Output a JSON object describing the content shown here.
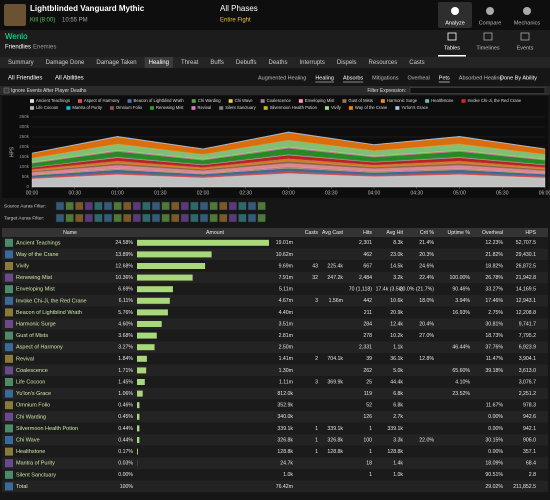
{
  "header": {
    "encounter": "Lightblinded Vanguard Mythic",
    "result": "Kill (8:00)",
    "time": "10:55 PM",
    "phase": "All Phases",
    "fight": "Entire Fight",
    "nav": [
      "Analyze",
      "Compare",
      "Mechanics"
    ]
  },
  "player": {
    "name": "Wenlo",
    "views": [
      "Friendlies",
      "Enemies"
    ]
  },
  "view_tabs": [
    "Tables",
    "Timelines",
    "Events"
  ],
  "tabs": [
    "Summary",
    "Damage Done",
    "Damage Taken",
    "Healing",
    "Threat",
    "Buffs",
    "Debuffs",
    "Deaths",
    "Interrupts",
    "Dispels",
    "Resources",
    "Casts"
  ],
  "filters": {
    "left": [
      "All Friendlies",
      "All Abilities"
    ],
    "options": [
      "Augmented Healing",
      "Healing",
      "Absorbs",
      "Mitigations",
      "Overheal",
      "Pets",
      "Absorbed Healing"
    ],
    "mode": "Done By Ability"
  },
  "ignore_deaths": "Ignore Events After Player Deaths",
  "filter_expression": "Filter Expression:",
  "chart_data": {
    "type": "area",
    "stacked": true,
    "y_label": "HPS",
    "grid": true,
    "x": [
      0,
      60,
      120,
      180,
      240,
      300,
      360
    ],
    "xlim": [
      0,
      360
    ],
    "xticks": [
      {
        "value": 0,
        "label": "00:00"
      },
      {
        "value": 30,
        "label": "00:30"
      },
      {
        "value": 60,
        "label": "01:00"
      },
      {
        "value": 90,
        "label": "01:30"
      },
      {
        "value": 120,
        "label": "02:00"
      },
      {
        "value": 150,
        "label": "02:30"
      },
      {
        "value": 180,
        "label": "03:00"
      },
      {
        "value": 210,
        "label": "03:30"
      },
      {
        "value": 240,
        "label": "04:00"
      },
      {
        "value": 270,
        "label": "04:30"
      },
      {
        "value": 300,
        "label": "05:00"
      },
      {
        "value": 330,
        "label": "05:30"
      },
      {
        "value": 360,
        "label": "06:00"
      }
    ],
    "ylim": [
      0,
      350000
    ],
    "yticks": [
      0,
      {
        "value": 50000,
        "label": "50k"
      },
      {
        "value": 100000,
        "label": "100k"
      },
      {
        "value": 150000,
        "label": "150k"
      },
      {
        "value": 200000,
        "label": "200k"
      },
      {
        "value": 250000,
        "label": "250k"
      },
      {
        "value": 300000,
        "label": "300k"
      },
      {
        "value": 350000,
        "label": "350k"
      }
    ],
    "series": [
      {
        "name": "Ancient Teachings",
        "color": "#e0e0e0",
        "values": [
          42000,
          63000,
          47000,
          69000,
          53000,
          63000,
          47000
        ]
      },
      {
        "name": "Aspect of Harmony",
        "color": "#e15759",
        "values": [
          6000,
          8000,
          6000,
          9000,
          7000,
          8000,
          6000
        ]
      },
      {
        "name": "Beacon of Lightblind Wrath",
        "color": "#4e79a7",
        "values": [
          10000,
          15000,
          11000,
          16000,
          12000,
          15000,
          11000
        ]
      },
      {
        "name": "Chi Warding",
        "color": "#59a14f",
        "values": [
          1000,
          1000,
          1000,
          1000,
          1000,
          1000,
          1000
        ]
      },
      {
        "name": "Chi Wave",
        "color": "#edc948",
        "values": [
          1000,
          1000,
          1000,
          1000,
          1000,
          1000,
          1000
        ]
      },
      {
        "name": "Coalescence",
        "color": "#b07aa1",
        "values": [
          3000,
          4000,
          3000,
          5000,
          4000,
          4000,
          3000
        ]
      },
      {
        "name": "Enveloping Mist",
        "color": "#ff9da7",
        "values": [
          11000,
          17000,
          13000,
          18000,
          14000,
          17000,
          13000
        ]
      },
      {
        "name": "Gust of Mists",
        "color": "#9c755f",
        "values": [
          6000,
          9000,
          7000,
          10000,
          8000,
          9000,
          7000
        ]
      },
      {
        "name": "Harmonic Surge",
        "color": "#f28e2b",
        "values": [
          8000,
          12000,
          9000,
          13000,
          10000,
          12000,
          9000
        ]
      },
      {
        "name": "Healthstone",
        "color": "#76b7b2",
        "values": [
          0,
          500,
          0,
          500,
          500,
          500,
          0
        ]
      },
      {
        "name": "Invoke Chi-Ji, the Red Crane",
        "color": "#d62728",
        "values": [
          10000,
          16000,
          12000,
          17000,
          13000,
          16000,
          12000
        ]
      },
      {
        "name": "Life Cocoon",
        "color": "#bab0ac",
        "values": [
          2000,
          4000,
          3000,
          4000,
          3000,
          4000,
          3000
        ]
      },
      {
        "name": "Mantra of Purity",
        "color": "#17becf",
        "values": [
          100,
          100,
          100,
          100,
          100,
          100,
          100
        ]
      },
      {
        "name": "Omnium Folio",
        "color": "#8c564b",
        "values": [
          1000,
          1000,
          1000,
          1000,
          1000,
          1000,
          1000
        ]
      },
      {
        "name": "Renewing Mist",
        "color": "#2ca02c",
        "values": [
          18000,
          26000,
          20000,
          29000,
          22000,
          26000,
          20000
        ]
      },
      {
        "name": "Revival",
        "color": "#e377c2",
        "values": [
          3000,
          5000,
          4000,
          5000,
          4000,
          5000,
          4000
        ]
      },
      {
        "name": "Silent Sanctuary",
        "color": "#7f7f7f",
        "values": [
          0,
          0,
          0,
          0,
          0,
          0,
          0
        ]
      },
      {
        "name": "Silvermoon Health Potion",
        "color": "#bcbd22",
        "values": [
          1000,
          1000,
          1000,
          1000,
          1000,
          1000,
          1000
        ]
      },
      {
        "name": "Vivify",
        "color": "#98df8a",
        "values": [
          21000,
          32000,
          24000,
          35000,
          27000,
          32000,
          24000
        ]
      },
      {
        "name": "Way of the Crane",
        "color": "#ff7f0e",
        "values": [
          24000,
          35000,
          26000,
          38000,
          29000,
          35000,
          26000
        ]
      },
      {
        "name": "Yu'lon's Grace",
        "color": "#aec7e8",
        "values": [
          2000,
          3000,
          2000,
          3000,
          2000,
          3000,
          2000
        ]
      }
    ]
  },
  "aura_filters": [
    "Source Auras Filter:",
    "Target Auras Filter:"
  ],
  "table": {
    "columns": [
      "Name",
      "Amount",
      "Casts",
      "Avg Cast",
      "Hits",
      "Avg Hit",
      "Crit %",
      "Uptime %",
      "Overheal",
      "HPS"
    ],
    "bar_color": "#a9d87c",
    "rows": [
      [
        "Ancient Teachings",
        24.58,
        "24.58%",
        "19.01m",
        null,
        null,
        "2,301",
        "8.3k",
        "21.4%",
        null,
        "12.23%",
        "52,707.5"
      ],
      [
        "Way of the Crane",
        13.89,
        "13.89%",
        "10.62m",
        null,
        null,
        "462",
        "23.0k",
        "20.3%",
        null,
        "21.82%",
        "29,430.1"
      ],
      [
        "Vivify",
        12.68,
        "12.68%",
        "9.69m",
        "43",
        "225.4k",
        "667",
        "14.5k",
        "24.6%",
        null,
        "18.82%",
        "26,872.5"
      ],
      [
        "Renewing Mist",
        10.36,
        "10.36%",
        "7.91m",
        "32",
        "247.2k",
        "2,484",
        "3.2k",
        "22.4%",
        "100.00%",
        "26.78%",
        "21,942.8"
      ],
      [
        "Enveloping Mist",
        6.69,
        "6.69%",
        "5.11m",
        null,
        null,
        "70 (1,118)",
        "17.4k (3.5k)",
        "20.0% (21.7%)",
        "90.46%",
        "33.27%",
        "14,169.5"
      ],
      [
        "Invoke Chi-Ji, the Red Crane",
        6.11,
        "6.11%",
        "4.67m",
        "3",
        "1.56m",
        "442",
        "10.6k",
        "18.0%",
        "3.94%",
        "17.46%",
        "12,943.1"
      ],
      [
        "Beacon of Lightblind Wrath",
        5.76,
        "5.76%",
        "4.40m",
        null,
        null,
        "211",
        "20.9k",
        null,
        "16.93%",
        "2.75%",
        "12,208.8"
      ],
      [
        "Harmonic Surge",
        4.6,
        "4.60%",
        "3.51m",
        null,
        null,
        "284",
        "12.4k",
        "20.4%",
        null,
        "30.81%",
        "9,741.7"
      ],
      [
        "Gust of Mists",
        3.68,
        "3.68%",
        "2.81m",
        null,
        null,
        "278",
        "10.2k",
        "27.0%",
        null,
        "18.73%",
        "7,795.2"
      ],
      [
        "Aspect of Harmony",
        3.27,
        "3.27%",
        "2.50m",
        null,
        null,
        "2,331",
        "1.1k",
        null,
        "46.44%",
        "37.76%",
        "6,923.9"
      ],
      [
        "Revival",
        1.84,
        "1.84%",
        "1.41m",
        "2",
        "704.1k",
        "39",
        "36.1k",
        "12.8%",
        null,
        "11.47%",
        "3,904.1"
      ],
      [
        "Coalescence",
        1.71,
        "1.71%",
        "1.30m",
        null,
        null,
        "262",
        "5.0k",
        null,
        "65.60%",
        "39.18%",
        "3,613.0"
      ],
      [
        "Life Cocoon",
        1.45,
        "1.45%",
        "1.11m",
        "3",
        "369.9k",
        "25",
        "44.4k",
        null,
        "4.10%",
        null,
        "3,076.7"
      ],
      [
        "Yu'lon's Grace",
        1.06,
        "1.06%",
        "812.0k",
        null,
        null,
        "119",
        "6.8k",
        null,
        "23.52%",
        null,
        "2,251.2"
      ],
      [
        "Omnium Folio",
        0.46,
        "0.46%",
        "352.9k",
        null,
        null,
        "52",
        "6.8k",
        null,
        null,
        "11.67%",
        "978.3"
      ],
      [
        "Chi Warding",
        0.45,
        "0.45%",
        "340.0k",
        null,
        null,
        "126",
        "2.7k",
        null,
        null,
        "0.00%",
        "942.6"
      ],
      [
        "Silvermoon Health Potion",
        0.44,
        "0.44%",
        "339.1k",
        "1",
        "339.1k",
        "1",
        "339.1k",
        null,
        null,
        "0.00%",
        "942.1"
      ],
      [
        "Chi Wave",
        0.44,
        "0.44%",
        "326.8k",
        "1",
        "326.8k",
        "100",
        "3.3k",
        "22.0%",
        null,
        "30.15%",
        "906.0"
      ],
      [
        "Healthstone",
        0.17,
        "0.17%",
        "128.8k",
        "1",
        "128.8k",
        "1",
        "128.8k",
        null,
        null,
        "0.00%",
        "357.1"
      ],
      [
        "Mantra of Purity",
        0.03,
        "0.03%",
        "24.7k",
        null,
        null,
        "18",
        "1.4k",
        null,
        null,
        "18.09%",
        "68.4"
      ],
      [
        "Silent Sanctuary",
        0.0,
        "0.00%",
        "1.0k",
        null,
        null,
        "1",
        "1.0k",
        null,
        null,
        "90.51%",
        "2.8"
      ]
    ],
    "total": [
      "Total",
      null,
      "100%",
      "76.42m",
      null,
      null,
      null,
      null,
      null,
      null,
      "29.02%",
      "211,852.5"
    ]
  }
}
